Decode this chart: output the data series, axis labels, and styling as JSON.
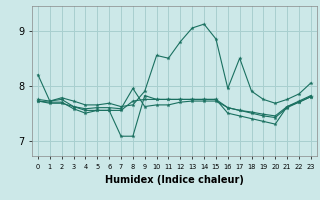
{
  "xlabel": "Humidex (Indice chaleur)",
  "background_color": "#cce8e8",
  "grid_color": "#a8cfcf",
  "line_color": "#1a7060",
  "x_values": [
    0,
    1,
    2,
    3,
    4,
    5,
    6,
    7,
    8,
    9,
    10,
    11,
    12,
    13,
    14,
    15,
    16,
    17,
    18,
    19,
    20,
    21,
    22,
    23
  ],
  "series": [
    [
      8.2,
      7.72,
      7.78,
      7.72,
      7.65,
      7.65,
      7.68,
      7.62,
      7.65,
      7.9,
      8.55,
      8.5,
      8.8,
      9.05,
      9.12,
      8.85,
      7.95,
      8.5,
      7.9,
      7.75,
      7.68,
      7.75,
      7.85,
      8.05
    ],
    [
      7.75,
      7.72,
      7.75,
      7.62,
      7.58,
      7.6,
      7.6,
      7.58,
      7.95,
      7.62,
      7.65,
      7.65,
      7.7,
      7.72,
      7.72,
      7.72,
      7.6,
      7.55,
      7.52,
      7.48,
      7.45,
      7.62,
      7.7,
      7.8
    ],
    [
      7.72,
      7.7,
      7.7,
      7.58,
      7.5,
      7.55,
      7.55,
      7.08,
      7.08,
      7.82,
      7.75,
      7.75,
      7.75,
      7.75,
      7.75,
      7.75,
      7.5,
      7.45,
      7.4,
      7.35,
      7.3,
      7.62,
      7.72,
      7.82
    ],
    [
      7.72,
      7.68,
      7.68,
      7.62,
      7.55,
      7.55,
      7.55,
      7.55,
      7.72,
      7.75,
      7.75,
      7.75,
      7.75,
      7.75,
      7.75,
      7.75,
      7.6,
      7.55,
      7.5,
      7.45,
      7.42,
      7.6,
      7.7,
      7.8
    ]
  ],
  "ylim": [
    6.72,
    9.45
  ],
  "yticks": [
    7,
    8,
    9
  ],
  "xtick_labels": [
    "0",
    "1",
    "2",
    "3",
    "4",
    "5",
    "6",
    "7",
    "8",
    "9",
    "10",
    "11",
    "12",
    "13",
    "14",
    "15",
    "16",
    "17",
    "18",
    "19",
    "20",
    "21",
    "22",
    "23"
  ]
}
